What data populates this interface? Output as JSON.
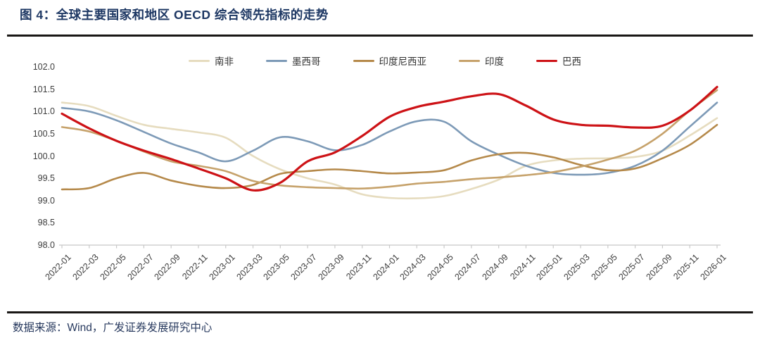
{
  "header": {
    "title": "图 4：全球主要国家和地区 OECD 综合领先指标的走势"
  },
  "footer": {
    "source": "数据来源：Wind，广发证券发展研究中心"
  },
  "colors": {
    "title_navy": "#1d3763",
    "divider_dark": "#191715",
    "axis_text": "#3c3c3c",
    "axis_line": "#c8c8c8"
  },
  "chart_data": {
    "type": "line",
    "title": "",
    "xlabel": "",
    "ylabel": "",
    "ylim": [
      98.0,
      102.0
    ],
    "y_ticks": [
      102.0,
      101.5,
      101.0,
      100.5,
      100.0,
      99.5,
      99.0,
      98.5,
      98.0
    ],
    "grid": false,
    "legend_position": "top",
    "categories": [
      "2022-01",
      "2022-03",
      "2022-05",
      "2022-07",
      "2022-09",
      "2022-11",
      "2023-01",
      "2023-03",
      "2023-05",
      "2023-07",
      "2023-09",
      "2023-11",
      "2024-01",
      "2024-03",
      "2024-05",
      "2024-07",
      "2024-09",
      "2024-11",
      "2025-01",
      "2025-03",
      "2025-05",
      "2025-07",
      "2025-09",
      "2025-11",
      "2026-01"
    ],
    "series": [
      {
        "name": "南非",
        "slug": "south-africa",
        "color": "#e6dcbf",
        "width": 2.6,
        "values": [
          101.2,
          101.12,
          100.9,
          100.7,
          100.61,
          100.53,
          100.41,
          100.0,
          99.7,
          99.5,
          99.36,
          99.14,
          99.06,
          99.05,
          99.1,
          99.26,
          99.47,
          99.78,
          99.9,
          99.94,
          99.95,
          99.98,
          100.12,
          100.46,
          100.85
        ]
      },
      {
        "name": "墨西哥",
        "slug": "mexico",
        "color": "#7d9ab7",
        "width": 2.6,
        "values": [
          101.08,
          101.0,
          100.8,
          100.54,
          100.28,
          100.08,
          99.88,
          100.12,
          100.42,
          100.33,
          100.13,
          100.25,
          100.55,
          100.78,
          100.77,
          100.33,
          100.03,
          99.78,
          99.62,
          99.58,
          99.62,
          99.78,
          100.12,
          100.66,
          101.2
        ]
      },
      {
        "name": "印度尼西亚",
        "slug": "indonesia",
        "color": "#b5894a",
        "width": 2.6,
        "values": [
          99.25,
          99.28,
          99.5,
          99.62,
          99.45,
          99.33,
          99.28,
          99.35,
          99.6,
          99.66,
          99.7,
          99.66,
          99.61,
          99.63,
          99.68,
          99.9,
          100.04,
          100.07,
          99.97,
          99.8,
          99.68,
          99.72,
          99.95,
          100.25,
          100.7
        ]
      },
      {
        "name": "印度",
        "slug": "india",
        "color": "#c6a26b",
        "width": 2.6,
        "values": [
          100.65,
          100.55,
          100.34,
          100.1,
          99.88,
          99.78,
          99.66,
          99.44,
          99.34,
          99.3,
          99.28,
          99.27,
          99.31,
          99.38,
          99.42,
          99.48,
          99.52,
          99.57,
          99.64,
          99.76,
          99.92,
          100.12,
          100.5,
          101.02,
          101.48
        ]
      },
      {
        "name": "巴西",
        "slug": "brazil",
        "color": "#cd1216",
        "width": 3.2,
        "values": [
          100.95,
          100.62,
          100.34,
          100.12,
          99.93,
          99.72,
          99.5,
          99.23,
          99.4,
          99.88,
          100.08,
          100.45,
          100.88,
          101.1,
          101.22,
          101.34,
          101.39,
          101.13,
          100.82,
          100.7,
          100.68,
          100.64,
          100.68,
          101.02,
          101.55
        ]
      }
    ]
  }
}
